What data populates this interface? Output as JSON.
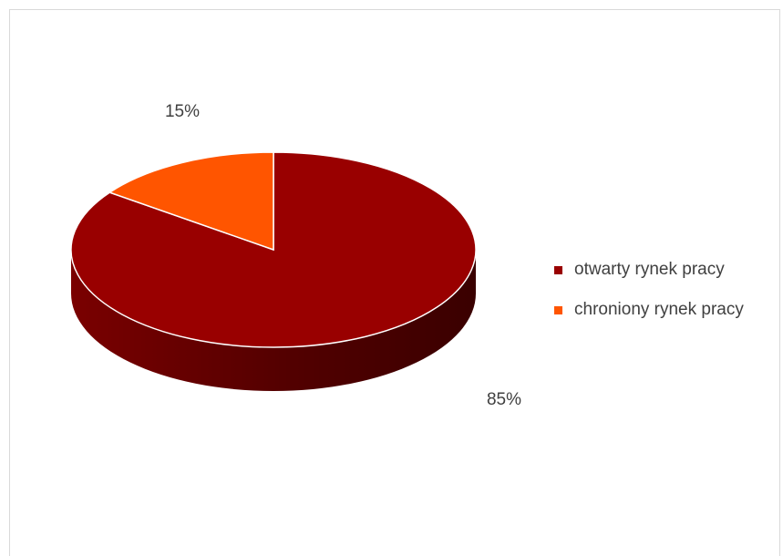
{
  "chart_data": {
    "type": "pie",
    "style": "3d",
    "categories": [
      "otwarty rynek pracy",
      "chroniony rynek pracy"
    ],
    "values": [
      85,
      15
    ],
    "data_labels": [
      "85%",
      "15%"
    ],
    "colors": [
      "#990000",
      "#ff5500"
    ],
    "legend_position": "right",
    "title": ""
  },
  "legend": {
    "items": [
      {
        "label": "otwarty rynek pracy",
        "color": "#990000"
      },
      {
        "label": "chroniony rynek pracy",
        "color": "#ff5500"
      }
    ]
  }
}
